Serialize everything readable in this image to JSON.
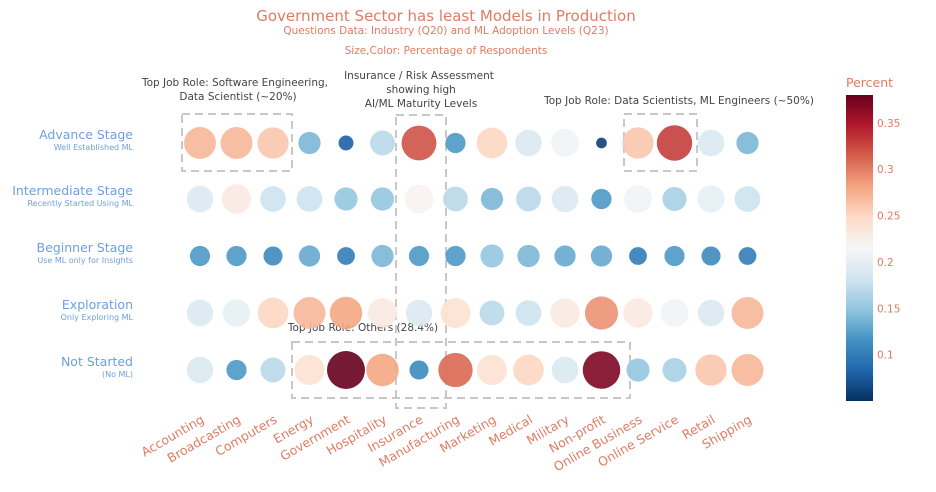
{
  "chart_data": {
    "type": "scatter",
    "title": "Government Sector has least Models in Production",
    "subtitle_1": "Questions Data: Industry (Q20) and ML Adoption Levels (Q23)",
    "subtitle_2": "Size,Color: Percentage of Respondents",
    "categories": [
      "Accounting",
      "Broadcasting",
      "Computers",
      "Energy",
      "Government",
      "Hospitality",
      "Insurance",
      "Manufacturing",
      "Marketing",
      "Medical",
      "Military",
      "Non-profit",
      "Online Business",
      "Online Service",
      "Retail",
      "Shipping"
    ],
    "stages": [
      {
        "label": "Advance Stage",
        "sublabel": "Well Established ML"
      },
      {
        "label": "Intermediate Stage",
        "sublabel": "Recently Started Using ML"
      },
      {
        "label": "Beginner Stage",
        "sublabel": "Use ML only for Insights"
      },
      {
        "label": "Exploration",
        "sublabel": "Only Exploring ML"
      },
      {
        "label": "Not Started",
        "sublabel": "(No ML)"
      }
    ],
    "values": [
      [
        0.27,
        0.27,
        0.26,
        0.14,
        0.08,
        0.17,
        0.32,
        0.12,
        0.25,
        0.19,
        0.21,
        0.06,
        0.26,
        0.33,
        0.19,
        0.14
      ],
      [
        0.19,
        0.23,
        0.18,
        0.18,
        0.15,
        0.15,
        0.22,
        0.17,
        0.14,
        0.17,
        0.19,
        0.12,
        0.21,
        0.16,
        0.2,
        0.18
      ],
      [
        0.12,
        0.12,
        0.11,
        0.13,
        0.1,
        0.14,
        0.12,
        0.12,
        0.15,
        0.14,
        0.13,
        0.13,
        0.1,
        0.12,
        0.11,
        0.1
      ],
      [
        0.19,
        0.2,
        0.25,
        0.27,
        0.28,
        0.23,
        0.19,
        0.24,
        0.17,
        0.18,
        0.23,
        0.29,
        0.23,
        0.21,
        0.19,
        0.27
      ],
      [
        0.19,
        0.12,
        0.17,
        0.24,
        0.38,
        0.28,
        0.11,
        0.31,
        0.24,
        0.25,
        0.19,
        0.37,
        0.15,
        0.16,
        0.26,
        0.27
      ]
    ],
    "colorbar": {
      "title": "Percent",
      "min": 0.05,
      "max": 0.38,
      "ticks": [
        0.1,
        0.15,
        0.2,
        0.25,
        0.3,
        0.35
      ],
      "tick_labels": [
        "0.1",
        "0.15",
        "0.2",
        "0.25",
        "0.3",
        "0.35"
      ]
    },
    "annotations": [
      {
        "lines": [
          "Top Job Role: Software Engineering,",
          "Data Scientist (~20%)"
        ]
      },
      {
        "lines": [
          "Insurance / Risk Assessment",
          "showing high",
          "AI/ML Maturity Levels"
        ]
      },
      {
        "lines": [
          "Top Job Role: Data Scientists, ML Engineers (~50%)"
        ]
      },
      {
        "lines": [
          "Top Job Role: Others (28.4%)"
        ]
      }
    ],
    "colors": [
      "#053061",
      "#2166ac",
      "#4393c3",
      "#92c5de",
      "#d1e5f0",
      "#f7f7f7",
      "#fddbc7",
      "#f4a582",
      "#d6604d",
      "#b2182b",
      "#67001f"
    ]
  }
}
